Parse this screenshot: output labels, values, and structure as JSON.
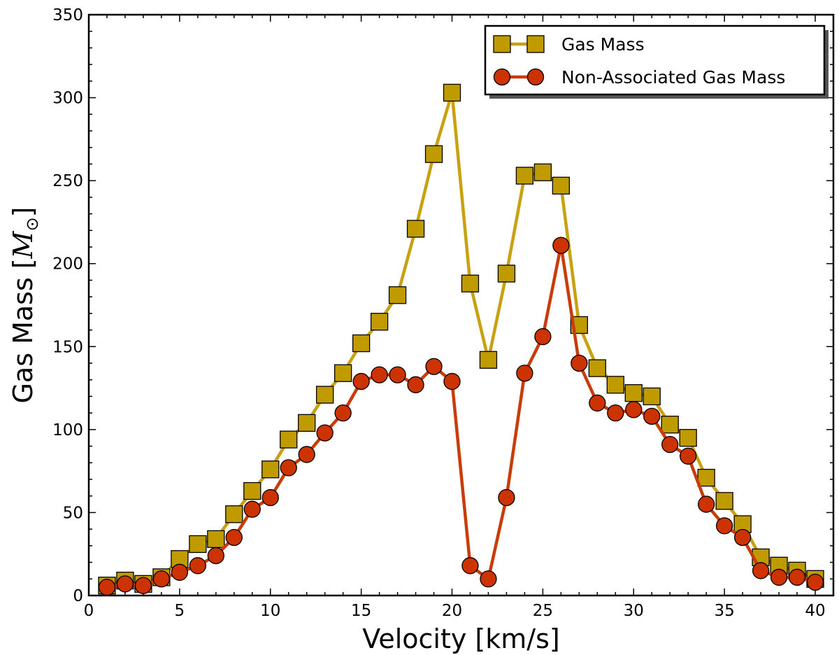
{
  "chart_data": {
    "type": "line",
    "title": "",
    "xlabel": "Velocity [km/s]",
    "ylabel_text": "Gas Mass [",
    "ylabel_symbol": "M",
    "ylabel_subscript": "⊙",
    "ylabel_close": "]",
    "xlim": [
      0,
      41
    ],
    "ylim": [
      0,
      350
    ],
    "xticks": [
      0,
      5,
      10,
      15,
      20,
      25,
      30,
      35,
      40
    ],
    "yticks": [
      0,
      50,
      100,
      150,
      200,
      250,
      300,
      350
    ],
    "legend_position": "top-right",
    "x": [
      1,
      2,
      3,
      4,
      5,
      6,
      7,
      8,
      9,
      10,
      11,
      12,
      13,
      14,
      15,
      16,
      17,
      18,
      19,
      20,
      21,
      22,
      23,
      24,
      25,
      26,
      27,
      28,
      29,
      30,
      31,
      32,
      33,
      34,
      35,
      36,
      37,
      38,
      39,
      40
    ],
    "series": [
      {
        "name": "Gas Mass",
        "marker": "square",
        "line_color": "#c8a010",
        "fill_color": "#c09b00",
        "values": [
          6,
          9,
          7,
          11,
          22,
          31,
          34,
          49,
          63,
          76,
          94,
          104,
          121,
          134,
          152,
          165,
          181,
          221,
          266,
          303,
          188,
          142,
          194,
          253,
          255,
          247,
          163,
          137,
          127,
          122,
          120,
          103,
          95,
          71,
          57,
          43,
          23,
          18,
          15,
          10
        ]
      },
      {
        "name": "Non-Associated Gas Mass",
        "marker": "circle",
        "line_color": "#c83c0a",
        "fill_color": "#cc3300",
        "values": [
          5,
          7,
          6,
          10,
          14,
          18,
          24,
          35,
          52,
          59,
          77,
          85,
          98,
          110,
          129,
          133,
          133,
          127,
          138,
          129,
          18,
          10,
          59,
          134,
          156,
          211,
          140,
          116,
          110,
          112,
          108,
          91,
          84,
          55,
          42,
          35,
          15,
          11,
          11,
          8
        ]
      }
    ]
  }
}
